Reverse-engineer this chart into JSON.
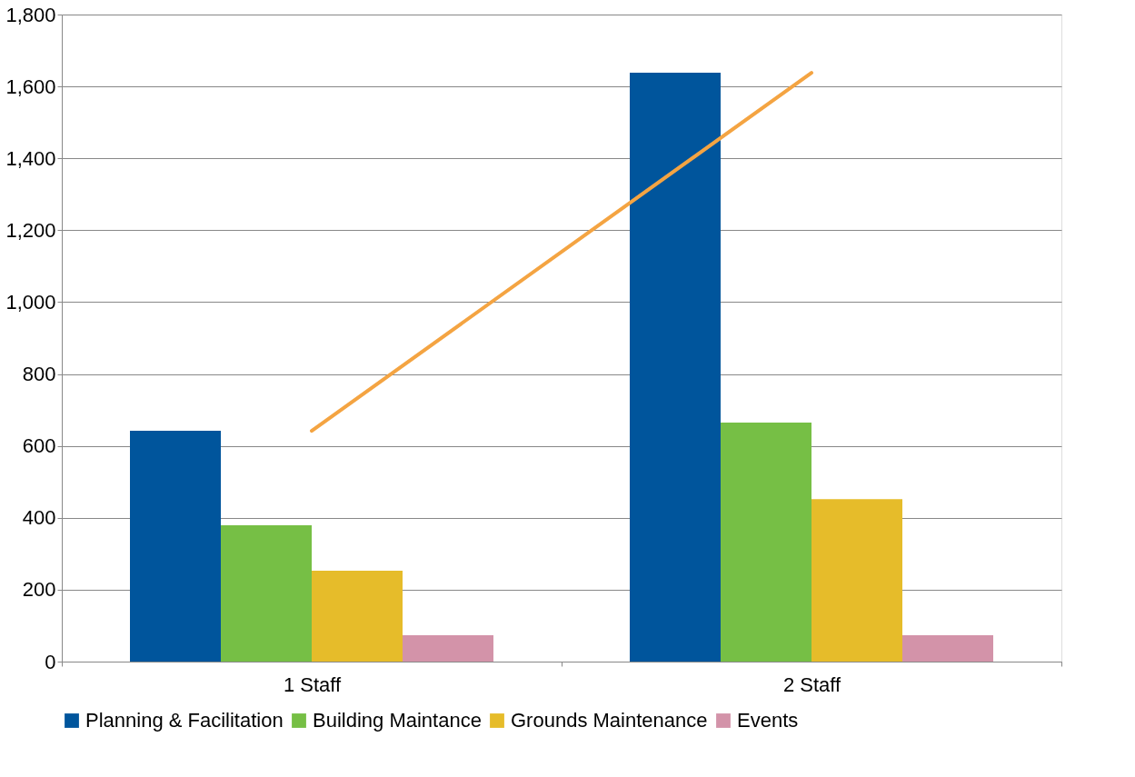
{
  "chart_data": {
    "type": "bar",
    "categories": [
      "1 Staff",
      "2 Staff"
    ],
    "series": [
      {
        "name": "Planning & Facilitation",
        "color": "#00559c",
        "values": [
          642,
          1638
        ]
      },
      {
        "name": "Building Maintance",
        "color": "#76bf45",
        "values": [
          379,
          665
        ]
      },
      {
        "name": "Grounds Maintenance",
        "color": "#e6bc2a",
        "values": [
          253,
          452
        ]
      },
      {
        "name": "Events",
        "color": "#d393a9",
        "values": [
          73,
          73
        ]
      },
      {
        "type": "line",
        "color": "#f4a442",
        "values": [
          642,
          1638
        ],
        "marker": "none"
      }
    ],
    "ylim": [
      0,
      1800
    ],
    "yticks": [
      {
        "value": 0,
        "label": "0"
      },
      {
        "value": 200,
        "label": "200"
      },
      {
        "value": 400,
        "label": "400"
      },
      {
        "value": 600,
        "label": "600"
      },
      {
        "value": 800,
        "label": "800"
      },
      {
        "value": 1000,
        "label": "1,000"
      },
      {
        "value": 1200,
        "label": "1,200"
      },
      {
        "value": 1400,
        "label": "1,400"
      },
      {
        "value": 1600,
        "label": "1,600"
      },
      {
        "value": 1800,
        "label": "1,800"
      }
    ],
    "grid": "y",
    "legend": "bottom"
  }
}
